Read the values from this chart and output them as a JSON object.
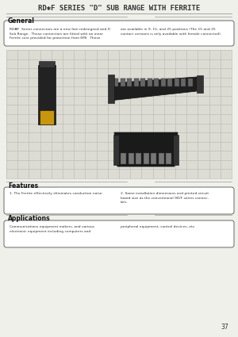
{
  "bg_color": "#f0f0eb",
  "title": "RD✱F SERIES \"D\" SUB RANGE WITH FERRITE",
  "section_general": "General",
  "general_text_left": "RD✱F  Series connectors are a new fam redesigned and D\nSub Range.  These connectors are fitted with an inner\nFerrite core provided for protection from EMI.  These",
  "general_text_right": "are available in 9, 15, and 25 positions (The 15 and 25\ncontact versions is only available with female connected).",
  "features_title": "Features",
  "features_text_left": "1. The Ferrite effectively eliminates conduction noise.",
  "features_text_right": "2. Same installation dimensions and printed circuit\nboard size as the conventional 9D/F series connec-\ntors.",
  "applications_title": "Applications",
  "applications_text_left": "Communications equipment makers, and various\nelectronic equipment including computers and",
  "applications_text_right": "peripheral equipment, control devices, etc.",
  "page_number": "37",
  "line_color": "#999999",
  "text_color": "#333333",
  "section_label_color": "#111111",
  "box_edge_color": "#666666",
  "grid_bg": "#dcdcd4",
  "grid_line_color": "#b8b8b0"
}
